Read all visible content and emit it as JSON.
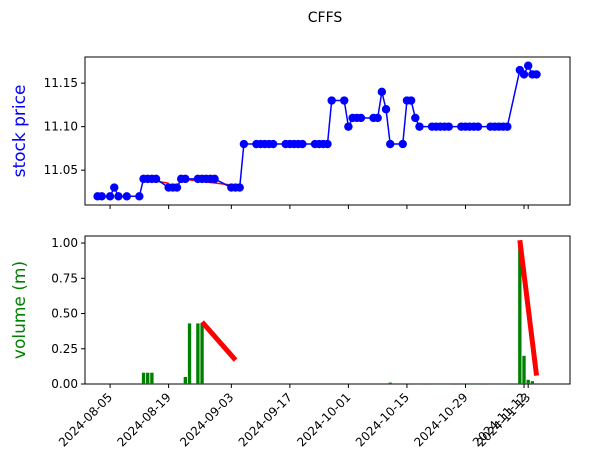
{
  "chart_data": [
    {
      "type": "line",
      "title": "CFFS",
      "ylabel": "stock price",
      "ylim": [
        11.01,
        11.18
      ],
      "yticks": [
        "11.05",
        "11.10",
        "11.15"
      ],
      "xlim": [
        "2024-07-30",
        "2024-11-23"
      ],
      "series": [
        {
          "values": [
            [
              "2024-08-02",
              11.02
            ],
            [
              "2024-08-03",
              11.02
            ],
            [
              "2024-08-05",
              11.02
            ],
            [
              "2024-08-06",
              11.03
            ],
            [
              "2024-08-07",
              11.02
            ],
            [
              "2024-08-09",
              11.02
            ],
            [
              "2024-08-12",
              11.02
            ],
            [
              "2024-08-13",
              11.04
            ],
            [
              "2024-08-14",
              11.04
            ],
            [
              "2024-08-15",
              11.04
            ],
            [
              "2024-08-16",
              11.04
            ],
            [
              "2024-08-19",
              11.03
            ],
            [
              "2024-08-20",
              11.03
            ],
            [
              "2024-08-21",
              11.03
            ],
            [
              "2024-08-22",
              11.04
            ],
            [
              "2024-08-23",
              11.04
            ],
            [
              "2024-08-26",
              11.04
            ],
            [
              "2024-08-27",
              11.04
            ],
            [
              "2024-08-28",
              11.04
            ],
            [
              "2024-08-29",
              11.04
            ],
            [
              "2024-08-30",
              11.04
            ],
            [
              "2024-09-03",
              11.03
            ],
            [
              "2024-09-04",
              11.03
            ],
            [
              "2024-09-05",
              11.03
            ],
            [
              "2024-09-06",
              11.08
            ],
            [
              "2024-09-09",
              11.08
            ],
            [
              "2024-09-10",
              11.08
            ],
            [
              "2024-09-11",
              11.08
            ],
            [
              "2024-09-12",
              11.08
            ],
            [
              "2024-09-13",
              11.08
            ],
            [
              "2024-09-16",
              11.08
            ],
            [
              "2024-09-17",
              11.08
            ],
            [
              "2024-09-18",
              11.08
            ],
            [
              "2024-09-19",
              11.08
            ],
            [
              "2024-09-20",
              11.08
            ],
            [
              "2024-09-23",
              11.08
            ],
            [
              "2024-09-24",
              11.08
            ],
            [
              "2024-09-25",
              11.08
            ],
            [
              "2024-09-26",
              11.08
            ],
            [
              "2024-09-27",
              11.13
            ],
            [
              "2024-09-30",
              11.13
            ],
            [
              "2024-10-01",
              11.1
            ],
            [
              "2024-10-02",
              11.11
            ],
            [
              "2024-10-03",
              11.11
            ],
            [
              "2024-10-04",
              11.11
            ],
            [
              "2024-10-07",
              11.11
            ],
            [
              "2024-10-08",
              11.11
            ],
            [
              "2024-10-09",
              11.14
            ],
            [
              "2024-10-10",
              11.12
            ],
            [
              "2024-10-11",
              11.08
            ],
            [
              "2024-10-14",
              11.08
            ],
            [
              "2024-10-15",
              11.13
            ],
            [
              "2024-10-16",
              11.13
            ],
            [
              "2024-10-17",
              11.11
            ],
            [
              "2024-10-18",
              11.1
            ],
            [
              "2024-10-21",
              11.1
            ],
            [
              "2024-10-22",
              11.1
            ],
            [
              "2024-10-23",
              11.1
            ],
            [
              "2024-10-24",
              11.1
            ],
            [
              "2024-10-25",
              11.1
            ],
            [
              "2024-10-28",
              11.1
            ],
            [
              "2024-10-29",
              11.1
            ],
            [
              "2024-10-30",
              11.1
            ],
            [
              "2024-10-31",
              11.1
            ],
            [
              "2024-11-01",
              11.1
            ],
            [
              "2024-11-04",
              11.1
            ],
            [
              "2024-11-05",
              11.1
            ],
            [
              "2024-11-06",
              11.1
            ],
            [
              "2024-11-07",
              11.1
            ],
            [
              "2024-11-08",
              11.1
            ],
            [
              "2024-11-11",
              11.165
            ],
            [
              "2024-11-12",
              11.16
            ],
            [
              "2024-11-13",
              11.17
            ],
            [
              "2024-11-14",
              11.16
            ],
            [
              "2024-11-15",
              11.16
            ]
          ]
        }
      ],
      "trend_segments": [
        {
          "start": [
            "2024-08-13",
            11.04
          ],
          "end": [
            "2024-08-19",
            11.035
          ]
        },
        {
          "start": [
            "2024-08-22",
            11.04
          ],
          "end": [
            "2024-09-03",
            11.033
          ]
        }
      ]
    },
    {
      "type": "bar",
      "ylabel": "volume (m)",
      "ylim": [
        0,
        1.05
      ],
      "yticks": [
        "0.00",
        "0.25",
        "0.50",
        "0.75",
        "1.00"
      ],
      "xticks": [
        "2024-08-05",
        "2024-08-19",
        "2024-09-03",
        "2024-09-17",
        "2024-10-01",
        "2024-10-15",
        "2024-10-29",
        "2024-11-12",
        "2024-11-13"
      ],
      "series": [
        {
          "values": [
            [
              "2024-08-13",
              0.08
            ],
            [
              "2024-08-14",
              0.08
            ],
            [
              "2024-08-15",
              0.08
            ],
            [
              "2024-08-23",
              0.05
            ],
            [
              "2024-08-24",
              0.43
            ],
            [
              "2024-08-26",
              0.43
            ],
            [
              "2024-08-27",
              0.43
            ],
            [
              "2024-10-11",
              0.01
            ],
            [
              "2024-10-17",
              0.005
            ],
            [
              "2024-10-18",
              0.005
            ],
            [
              "2024-10-21",
              0.005
            ],
            [
              "2024-10-22",
              0.005
            ],
            [
              "2024-10-23",
              0.005
            ],
            [
              "2024-10-24",
              0.005
            ],
            [
              "2024-10-25",
              0.005
            ],
            [
              "2024-10-28",
              0.005
            ],
            [
              "2024-10-29",
              0.005
            ],
            [
              "2024-10-30",
              0.005
            ],
            [
              "2024-10-31",
              0.005
            ],
            [
              "2024-11-01",
              0.005
            ],
            [
              "2024-11-04",
              0.005
            ],
            [
              "2024-11-05",
              0.005
            ],
            [
              "2024-11-06",
              0.005
            ],
            [
              "2024-11-07",
              0.005
            ],
            [
              "2024-11-08",
              0.005
            ],
            [
              "2024-11-11",
              1.0
            ],
            [
              "2024-11-12",
              0.2
            ],
            [
              "2024-11-13",
              0.03
            ],
            [
              "2024-11-14",
              0.02
            ]
          ]
        }
      ],
      "trend_segments": [
        {
          "start": [
            "2024-08-27",
            0.44
          ],
          "end": [
            "2024-09-04",
            0.17
          ]
        },
        {
          "start": [
            "2024-11-11",
            1.02
          ],
          "end": [
            "2024-11-15",
            0.06
          ]
        }
      ]
    }
  ],
  "colors": {
    "price": "#0000ff",
    "volume_bar": "#008000",
    "trend": "#ff0000",
    "price_label": "#0000ff",
    "volume_label": "#008000"
  }
}
